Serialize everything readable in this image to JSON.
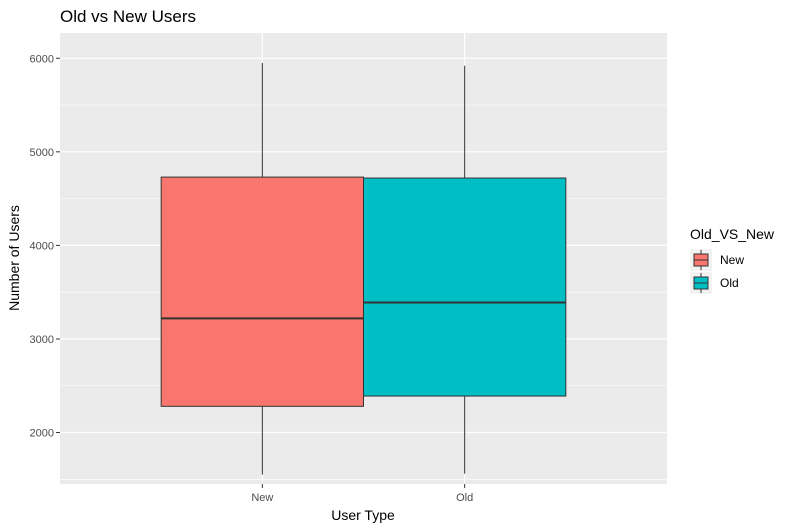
{
  "chart_data": {
    "type": "boxplot",
    "title": "Old vs New Users",
    "xlabel": "User Type",
    "ylabel": "Number of Users",
    "categories": [
      "New",
      "Old"
    ],
    "boxes": [
      {
        "category": "New",
        "min": 1550,
        "q1": 2280,
        "median": 3220,
        "q3": 4730,
        "max": 5950,
        "color": "#F8766D"
      },
      {
        "category": "Old",
        "min": 1560,
        "q1": 2390,
        "median": 3390,
        "q3": 4720,
        "max": 5920,
        "color": "#00BFC4"
      }
    ],
    "yticks": [
      2000,
      3000,
      4000,
      5000,
      6000
    ],
    "ylim": [
      1450,
      6270
    ],
    "grid": true,
    "legend": {
      "title": "Old_VS_New",
      "position": "right",
      "entries": [
        {
          "label": "New",
          "color": "#F8766D"
        },
        {
          "label": "Old",
          "color": "#00BFC4"
        }
      ]
    }
  }
}
